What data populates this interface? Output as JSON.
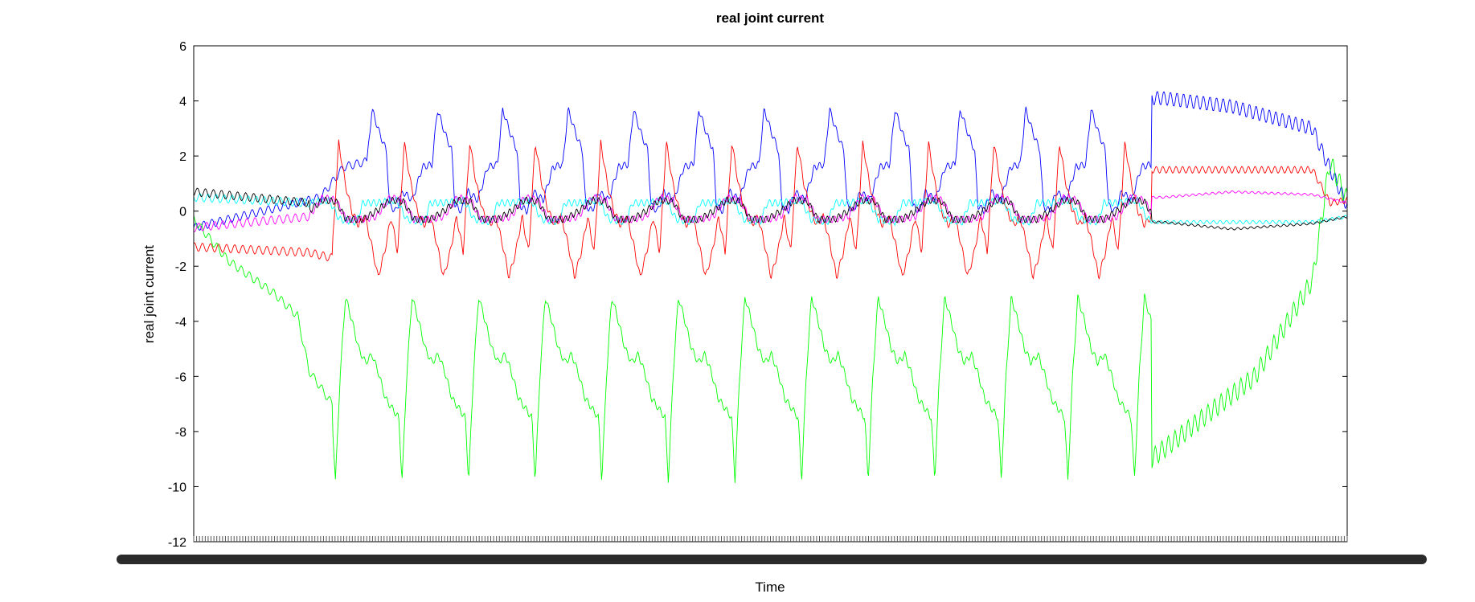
{
  "chart_data": {
    "type": "line",
    "title": "real joint current",
    "xlabel": "Time",
    "ylabel": "real joint current",
    "ylim": [
      -12,
      6
    ],
    "yticks": [
      "6",
      "4",
      "2",
      "0",
      "-2",
      "-4",
      "-6",
      "-8",
      "-10",
      "-12"
    ],
    "x_tick_labels_legible": false,
    "grid": false,
    "legend": "none",
    "series": [
      {
        "color": "#0000ff",
        "pattern": {
          "start": [
            0,
            -0.6
          ],
          "ramp": [
            [
              0.09,
              0.3
            ],
            [
              0.11,
              0.5
            ],
            [
              0.13,
              1.6
            ],
            [
              0.15,
              1.8
            ]
          ],
          "cycles_from": 0.15,
          "cycles_to": 0.83,
          "cycles": 12,
          "cycle_shape": [
            [
              0,
              1.7
            ],
            [
              0.08,
              3.7
            ],
            [
              0.2,
              2.8
            ],
            [
              0.3,
              2.2
            ],
            [
              0.35,
              0.2
            ],
            [
              0.45,
              0.0
            ],
            [
              0.55,
              0.7
            ],
            [
              0.7,
              0.4
            ],
            [
              0.85,
              1.6
            ],
            [
              1.0,
              1.7
            ]
          ],
          "end": [
            [
              0.84,
              4.1
            ],
            [
              0.9,
              3.8
            ],
            [
              0.97,
              3.0
            ],
            [
              0.98,
              2.0
            ],
            [
              1.0,
              0.2
            ]
          ],
          "osc_end": 0.25
        }
      },
      {
        "color": "#ff0000",
        "pattern": {
          "start": [
            0,
            -1.3
          ],
          "ramp": [
            [
              0.1,
              -1.5
            ],
            [
              0.12,
              -1.7
            ]
          ],
          "cycles_from": 0.12,
          "cycles_to": 0.83,
          "cycles": 12.5,
          "cycle_shape": [
            [
              0,
              -1.5
            ],
            [
              0.1,
              2.5
            ],
            [
              0.2,
              1.0
            ],
            [
              0.3,
              0.0
            ],
            [
              0.4,
              -0.5
            ],
            [
              0.5,
              -0.2
            ],
            [
              0.6,
              -1.2
            ],
            [
              0.7,
              -2.4
            ],
            [
              0.8,
              -1.5
            ],
            [
              0.9,
              -0.2
            ],
            [
              1.0,
              -1.5
            ]
          ],
          "end": [
            [
              0.84,
              1.5
            ],
            [
              0.97,
              1.5
            ],
            [
              0.985,
              0.3
            ],
            [
              1.0,
              0.4
            ]
          ],
          "osc_end": 0.12
        }
      },
      {
        "color": "#00ff00",
        "pattern": {
          "start": [
            0,
            -0.3
          ],
          "ramp": [
            [
              0.03,
              -1.8
            ],
            [
              0.07,
              -3.0
            ],
            [
              0.09,
              -3.8
            ],
            [
              0.1,
              -5.8
            ],
            [
              0.12,
              -7.0
            ]
          ],
          "cycles_from": 0.12,
          "cycles_to": 0.83,
          "cycles": 12.3,
          "cycle_shape": [
            [
              0,
              -7.5
            ],
            [
              0.05,
              -9.8
            ],
            [
              0.12,
              -6.0
            ],
            [
              0.2,
              -3.1
            ],
            [
              0.3,
              -4.0
            ],
            [
              0.4,
              -5.0
            ],
            [
              0.5,
              -5.5
            ],
            [
              0.6,
              -5.2
            ],
            [
              0.7,
              -5.9
            ],
            [
              0.8,
              -6.8
            ],
            [
              1.0,
              -7.5
            ]
          ],
          "end": [
            [
              0.83,
              -9.0
            ],
            [
              0.86,
              -8.0
            ],
            [
              0.92,
              -6.0
            ],
            [
              0.97,
              -2.5
            ],
            [
              0.985,
              1.8
            ],
            [
              1.0,
              0.4
            ]
          ],
          "osc_end": 0.35
        }
      },
      {
        "color": "#00ffff",
        "pattern": {
          "start": [
            0,
            0.5
          ],
          "ramp": [
            [
              0.1,
              0.3
            ]
          ],
          "cycles_from": 0.1,
          "cycles_to": 0.83,
          "cycles": 12.5,
          "cycle_shape": [
            [
              0,
              0.3
            ],
            [
              0.3,
              0.4
            ],
            [
              0.45,
              -0.3
            ],
            [
              0.7,
              -0.4
            ],
            [
              0.8,
              0.3
            ],
            [
              1.0,
              0.3
            ]
          ],
          "end": [
            [
              0.84,
              -0.4
            ],
            [
              0.97,
              -0.4
            ],
            [
              1.0,
              -0.2
            ]
          ],
          "osc_end": 0.06
        }
      },
      {
        "color": "#ff00ff",
        "pattern": {
          "start": [
            0,
            -0.6
          ],
          "ramp": [
            [
              0.1,
              -0.2
            ]
          ],
          "cycles_from": 0.1,
          "cycles_to": 0.83,
          "cycles": 12.5,
          "cycle_shape": [
            [
              0,
              -0.2
            ],
            [
              0.2,
              0.5
            ],
            [
              0.4,
              0.4
            ],
            [
              0.55,
              -0.3
            ],
            [
              0.8,
              -0.3
            ],
            [
              1.0,
              -0.2
            ]
          ],
          "end": [
            [
              0.84,
              0.5
            ],
            [
              0.9,
              0.7
            ],
            [
              0.97,
              0.6
            ],
            [
              1.0,
              0.3
            ]
          ],
          "osc_end": 0.04
        }
      },
      {
        "color": "#000000",
        "pattern": {
          "start": [
            0,
            0.7
          ],
          "ramp": [
            [
              0.1,
              0.3
            ]
          ],
          "cycles_from": 0.1,
          "cycles_to": 0.83,
          "cycles": 12.5,
          "cycle_shape": [
            [
              0,
              0.0
            ],
            [
              0.2,
              0.4
            ],
            [
              0.4,
              0.35
            ],
            [
              0.55,
              -0.3
            ],
            [
              0.8,
              -0.3
            ],
            [
              1.0,
              0.0
            ]
          ],
          "end": [
            [
              0.84,
              -0.4
            ],
            [
              0.9,
              -0.65
            ],
            [
              0.97,
              -0.45
            ],
            [
              1.0,
              -0.2
            ]
          ],
          "osc_end": 0.04
        }
      }
    ]
  }
}
